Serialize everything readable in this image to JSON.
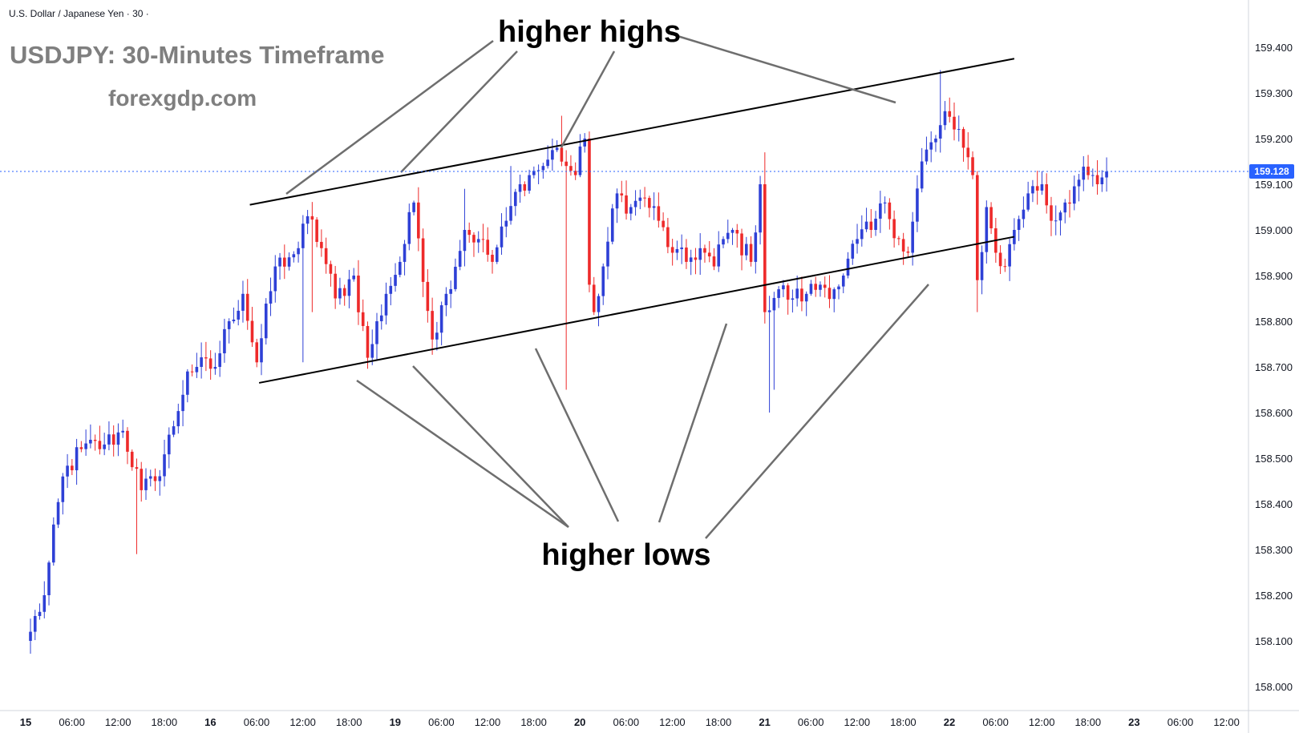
{
  "chart_data": {
    "type": "candlestick",
    "symbol_label": "U.S. Dollar / Japanese Yen · 30 ·",
    "title": "USDJPY: 30-Minutes Timeframe",
    "watermark": "forexgdp.com",
    "annotations": {
      "upper": "higher highs",
      "lower": "higher lows"
    },
    "current_price": "159.128",
    "ylim": [
      157.95,
      159.47
    ],
    "y_ticks": [
      "158.000",
      "158.100",
      "158.200",
      "158.300",
      "158.400",
      "158.500",
      "158.600",
      "158.700",
      "158.800",
      "158.900",
      "159.000",
      "159.100",
      "159.200",
      "159.300",
      "159.400"
    ],
    "x_ticks": [
      {
        "label": "15",
        "major": true
      },
      {
        "label": "06:00",
        "major": false
      },
      {
        "label": "12:00",
        "major": false
      },
      {
        "label": "18:00",
        "major": false
      },
      {
        "label": "16",
        "major": true
      },
      {
        "label": "06:00",
        "major": false
      },
      {
        "label": "12:00",
        "major": false
      },
      {
        "label": "18:00",
        "major": false
      },
      {
        "label": "19",
        "major": true
      },
      {
        "label": "06:00",
        "major": false
      },
      {
        "label": "12:00",
        "major": false
      },
      {
        "label": "18:00",
        "major": false
      },
      {
        "label": "20",
        "major": true
      },
      {
        "label": "06:00",
        "major": false
      },
      {
        "label": "12:00",
        "major": false
      },
      {
        "label": "18:00",
        "major": false
      },
      {
        "label": "21",
        "major": true
      },
      {
        "label": "06:00",
        "major": false
      },
      {
        "label": "12:00",
        "major": false
      },
      {
        "label": "18:00",
        "major": false
      },
      {
        "label": "22",
        "major": true
      },
      {
        "label": "06:00",
        "major": false
      },
      {
        "label": "12:00",
        "major": false
      },
      {
        "label": "18:00",
        "major": false
      },
      {
        "label": "23",
        "major": true
      },
      {
        "label": "06:00",
        "major": false
      },
      {
        "label": "12:00",
        "major": false
      }
    ],
    "trendlines": [
      {
        "name": "upper-channel",
        "from": {
          "x": 47.5,
          "y": 159.055
        },
        "to": {
          "x": 213,
          "y": 159.375
        }
      },
      {
        "name": "lower-channel",
        "from": {
          "x": 49.5,
          "y": 158.665
        },
        "to": {
          "x": 213,
          "y": 158.985
        }
      }
    ],
    "anchors": [
      {
        "bar": 0,
        "price": 158.12
      },
      {
        "bar": 3,
        "price": 158.2
      },
      {
        "bar": 7,
        "price": 158.46
      },
      {
        "bar": 11,
        "price": 158.52
      },
      {
        "bar": 16,
        "price": 158.53
      },
      {
        "bar": 20,
        "price": 158.56
      },
      {
        "bar": 24,
        "price": 158.43
      },
      {
        "bar": 27,
        "price": 158.45
      },
      {
        "bar": 31,
        "price": 158.57
      },
      {
        "bar": 34,
        "price": 158.69
      },
      {
        "bar": 36,
        "price": 158.7
      },
      {
        "bar": 40,
        "price": 158.7
      },
      {
        "bar": 43,
        "price": 158.8
      },
      {
        "bar": 46,
        "price": 158.86
      },
      {
        "bar": 49,
        "price": 158.71
      },
      {
        "bar": 53,
        "price": 158.92
      },
      {
        "bar": 56,
        "price": 158.94
      },
      {
        "bar": 58,
        "price": 158.96
      },
      {
        "bar": 60,
        "price": 159.03
      },
      {
        "bar": 63,
        "price": 158.96
      },
      {
        "bar": 66,
        "price": 158.85
      },
      {
        "bar": 70,
        "price": 158.9
      },
      {
        "bar": 73,
        "price": 158.72
      },
      {
        "bar": 77,
        "price": 158.86
      },
      {
        "bar": 80,
        "price": 158.93
      },
      {
        "bar": 83,
        "price": 159.06
      },
      {
        "bar": 87,
        "price": 158.76
      },
      {
        "bar": 90,
        "price": 158.86
      },
      {
        "bar": 94,
        "price": 159.0
      },
      {
        "bar": 97,
        "price": 158.98
      },
      {
        "bar": 100,
        "price": 158.93
      },
      {
        "bar": 103,
        "price": 159.02
      },
      {
        "bar": 106,
        "price": 159.1
      },
      {
        "bar": 108,
        "price": 159.12
      },
      {
        "bar": 111,
        "price": 159.14
      },
      {
        "bar": 114,
        "price": 159.18
      },
      {
        "bar": 116,
        "price": 159.14
      },
      {
        "bar": 118,
        "price": 159.12
      },
      {
        "bar": 120,
        "price": 159.2
      },
      {
        "bar": 121,
        "price": 158.88
      },
      {
        "bar": 122,
        "price": 158.82
      },
      {
        "bar": 124,
        "price": 158.92
      },
      {
        "bar": 127,
        "price": 159.08
      },
      {
        "bar": 130,
        "price": 159.05
      },
      {
        "bar": 133,
        "price": 159.07
      },
      {
        "bar": 136,
        "price": 159.02
      },
      {
        "bar": 139,
        "price": 158.95
      },
      {
        "bar": 142,
        "price": 158.93
      },
      {
        "bar": 145,
        "price": 158.96
      },
      {
        "bar": 148,
        "price": 158.92
      },
      {
        "bar": 150,
        "price": 158.98
      },
      {
        "bar": 152,
        "price": 159.0
      },
      {
        "bar": 156,
        "price": 158.93
      },
      {
        "bar": 158,
        "price": 159.1
      },
      {
        "bar": 159,
        "price": 158.82
      },
      {
        "bar": 162,
        "price": 158.87
      },
      {
        "bar": 165,
        "price": 158.85
      },
      {
        "bar": 168,
        "price": 158.86
      },
      {
        "bar": 171,
        "price": 158.88
      },
      {
        "bar": 174,
        "price": 158.87
      },
      {
        "bar": 176,
        "price": 158.9
      },
      {
        "bar": 179,
        "price": 158.98
      },
      {
        "bar": 182,
        "price": 159.0
      },
      {
        "bar": 185,
        "price": 159.06
      },
      {
        "bar": 188,
        "price": 158.98
      },
      {
        "bar": 190,
        "price": 158.95
      },
      {
        "bar": 193,
        "price": 159.15
      },
      {
        "bar": 196,
        "price": 159.2
      },
      {
        "bar": 198,
        "price": 159.26
      },
      {
        "bar": 200,
        "price": 159.22
      },
      {
        "bar": 202,
        "price": 159.18
      },
      {
        "bar": 204,
        "price": 159.12
      },
      {
        "bar": 205,
        "price": 158.89
      },
      {
        "bar": 207,
        "price": 159.05
      },
      {
        "bar": 209,
        "price": 158.95
      },
      {
        "bar": 211,
        "price": 158.92
      },
      {
        "bar": 213,
        "price": 159.0
      },
      {
        "bar": 216,
        "price": 159.08
      },
      {
        "bar": 219,
        "price": 159.1
      },
      {
        "bar": 221,
        "price": 159.02
      },
      {
        "bar": 224,
        "price": 159.06
      },
      {
        "bar": 227,
        "price": 159.11
      },
      {
        "bar": 229,
        "price": 159.12
      },
      {
        "bar": 231,
        "price": 159.1
      },
      {
        "bar": 233,
        "price": 159.128
      }
    ],
    "spikes": [
      {
        "bar": 23,
        "price": 158.29
      },
      {
        "bar": 46,
        "price": 158.86
      },
      {
        "bar": 59,
        "price": 158.71
      },
      {
        "bar": 61,
        "price": 158.82
      },
      {
        "bar": 94,
        "price": 159.09
      },
      {
        "bar": 104,
        "price": 159.14
      },
      {
        "bar": 115,
        "price": 159.25
      },
      {
        "bar": 116,
        "price": 158.65
      },
      {
        "bar": 159,
        "price": 159.17
      },
      {
        "bar": 160,
        "price": 158.6
      },
      {
        "bar": 161,
        "price": 158.65
      },
      {
        "bar": 197,
        "price": 159.35
      },
      {
        "bar": 205,
        "price": 158.82
      }
    ],
    "colors": {
      "up": "#2e40d6",
      "down": "#ee2a2a",
      "trendline": "#000000",
      "annotation_line": "#6e6e6e",
      "price_line": "#2962ff",
      "grid": false
    }
  }
}
